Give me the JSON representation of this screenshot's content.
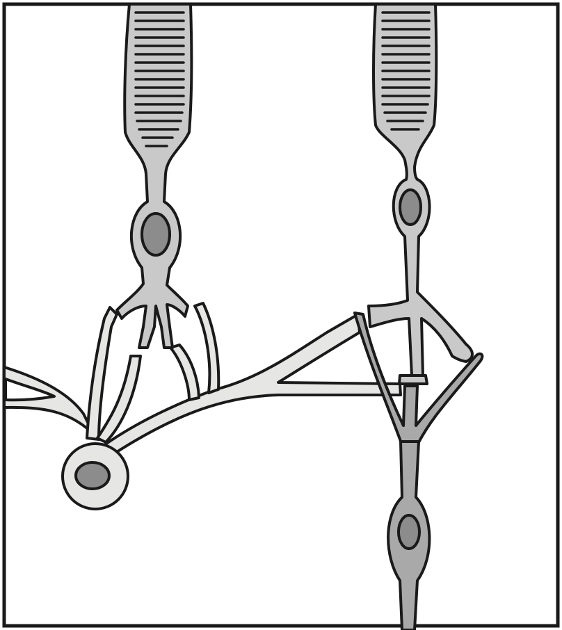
{
  "figure": {
    "type": "retina-neuron-schematic",
    "colors": {
      "background": "#ffffff",
      "frame": "#1a1a1a",
      "photoreceptor": "#c9c9c9",
      "bipolar_cell": "#a9a9a9",
      "horizontal_cell": "#e6e6e4",
      "nucleus": "#8c8c8c",
      "outline": "#1a1a1a"
    },
    "elements": [
      "photoreceptor-left",
      "photoreceptor-right",
      "horizontal-cell",
      "bipolar-cell"
    ]
  }
}
